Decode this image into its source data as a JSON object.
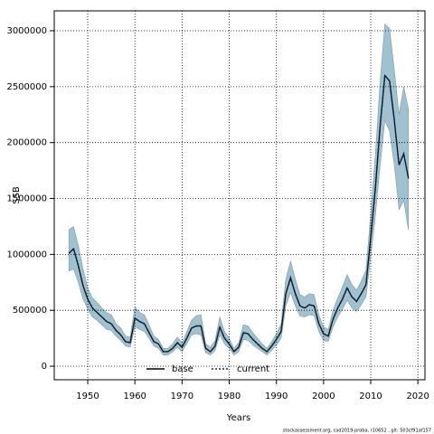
{
  "chart_data": {
    "type": "line",
    "xlabel": "Years",
    "ylabel": "SSB",
    "footnote": "stockassessment.org, cod2019-proba, r10652 , git: 503cf91af157",
    "x": [
      1946,
      1947,
      1948,
      1949,
      1950,
      1951,
      1952,
      1953,
      1954,
      1955,
      1956,
      1957,
      1958,
      1959,
      1960,
      1961,
      1962,
      1963,
      1964,
      1965,
      1966,
      1967,
      1968,
      1969,
      1970,
      1971,
      1972,
      1973,
      1974,
      1975,
      1976,
      1977,
      1978,
      1979,
      1980,
      1981,
      1982,
      1983,
      1984,
      1985,
      1986,
      1987,
      1988,
      1989,
      1990,
      1991,
      1992,
      1993,
      1994,
      1995,
      1996,
      1997,
      1998,
      1999,
      2000,
      2001,
      2002,
      2003,
      2004,
      2005,
      2006,
      2007,
      2008,
      2009,
      2010,
      2011,
      2012,
      2013,
      2014,
      2015,
      2016,
      2017,
      2018
    ],
    "series": [
      {
        "name": "base",
        "color": "#000000",
        "dash": "solid",
        "values": [
          1010000,
          1050000,
          900000,
          720000,
          600000,
          520000,
          480000,
          440000,
          400000,
          380000,
          320000,
          280000,
          220000,
          210000,
          430000,
          400000,
          380000,
          300000,
          220000,
          200000,
          130000,
          130000,
          160000,
          210000,
          170000,
          250000,
          340000,
          360000,
          360000,
          160000,
          130000,
          180000,
          350000,
          250000,
          200000,
          130000,
          170000,
          300000,
          290000,
          240000,
          200000,
          160000,
          130000,
          180000,
          240000,
          310000,
          650000,
          790000,
          650000,
          540000,
          520000,
          550000,
          540000,
          380000,
          290000,
          270000,
          420000,
          520000,
          600000,
          700000,
          620000,
          580000,
          650000,
          730000,
          1150000,
          1600000,
          2150000,
          2600000,
          2550000,
          2200000,
          1800000,
          1900000,
          1680000
        ]
      },
      {
        "name": "current",
        "color": "#0d2a4a",
        "dash": "dotted",
        "values": [
          1010000,
          1050000,
          900000,
          720000,
          600000,
          520000,
          480000,
          440000,
          400000,
          380000,
          320000,
          280000,
          220000,
          210000,
          430000,
          400000,
          380000,
          300000,
          220000,
          200000,
          130000,
          130000,
          160000,
          210000,
          170000,
          250000,
          340000,
          360000,
          360000,
          160000,
          130000,
          180000,
          350000,
          250000,
          200000,
          130000,
          170000,
          300000,
          290000,
          240000,
          200000,
          160000,
          130000,
          180000,
          240000,
          310000,
          650000,
          790000,
          650000,
          540000,
          520000,
          550000,
          540000,
          380000,
          290000,
          270000,
          420000,
          520000,
          600000,
          700000,
          620000,
          580000,
          650000,
          730000,
          1150000,
          1600000,
          2150000,
          2600000,
          2550000,
          2200000,
          1800000,
          1900000,
          1680000
        ]
      }
    ],
    "band": {
      "color": "#9fc1d0",
      "lower": [
        850000,
        870000,
        750000,
        600000,
        510000,
        440000,
        410000,
        370000,
        330000,
        320000,
        270000,
        230000,
        180000,
        170000,
        350000,
        330000,
        310000,
        250000,
        180000,
        160000,
        100000,
        100000,
        130000,
        170000,
        130000,
        200000,
        280000,
        290000,
        280000,
        120000,
        100000,
        140000,
        280000,
        200000,
        160000,
        100000,
        130000,
        240000,
        230000,
        190000,
        160000,
        130000,
        100000,
        140000,
        190000,
        250000,
        540000,
        660000,
        540000,
        450000,
        440000,
        460000,
        450000,
        310000,
        230000,
        220000,
        350000,
        440000,
        510000,
        590000,
        520000,
        490000,
        550000,
        620000,
        980000,
        1350000,
        1800000,
        2200000,
        2100000,
        1800000,
        1400000,
        1480000,
        1220000
      ],
      "upper": [
        1220000,
        1250000,
        1080000,
        870000,
        700000,
        610000,
        570000,
        520000,
        480000,
        460000,
        380000,
        340000,
        270000,
        260000,
        530000,
        480000,
        460000,
        370000,
        270000,
        240000,
        160000,
        160000,
        200000,
        260000,
        210000,
        310000,
        410000,
        450000,
        460000,
        200000,
        170000,
        230000,
        440000,
        310000,
        250000,
        160000,
        210000,
        370000,
        360000,
        300000,
        250000,
        200000,
        160000,
        220000,
        290000,
        380000,
        780000,
        940000,
        780000,
        640000,
        620000,
        650000,
        640000,
        460000,
        350000,
        330000,
        500000,
        610000,
        710000,
        820000,
        730000,
        680000,
        760000,
        860000,
        1360000,
        1900000,
        2550000,
        3060000,
        3020000,
        2650000,
        2250000,
        2500000,
        2300000
      ]
    },
    "xlim": [
      1942.9,
      2021.5
    ],
    "ylim": [
      -121000,
      3178000
    ],
    "xticks": [
      1950,
      1960,
      1970,
      1980,
      1990,
      2000,
      2010,
      2020
    ],
    "yticks": [
      0,
      500000,
      1000000,
      1500000,
      2000000,
      2500000,
      3000000
    ],
    "grid": true,
    "legend": "bottom"
  }
}
